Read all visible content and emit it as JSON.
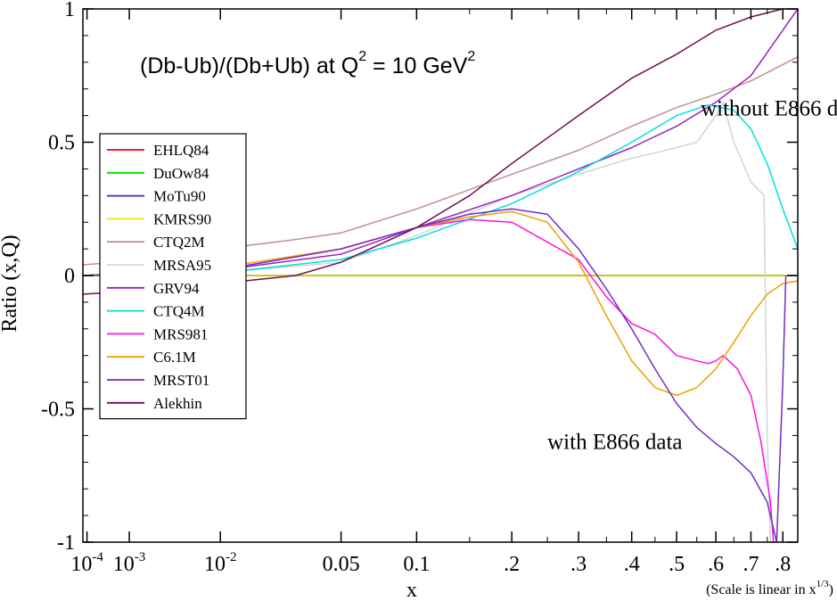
{
  "chart_data": {
    "type": "line",
    "title": {
      "prefix": "(Db-Ub)/(Db+Ub) at Q",
      "sup1": "2",
      "mid": " = 10 GeV",
      "sup2": "2"
    },
    "xlabel": "x",
    "ylabel": "Ratio  (x,Q)",
    "x_scale": "cube-root",
    "scale_note": {
      "text": "(Scale is linear in x",
      "sup": "1/3",
      "close": ")"
    },
    "xlim": [
      7e-05,
      0.85
    ],
    "ylim": [
      -1,
      1
    ],
    "y_ticks": [
      {
        "value": -1,
        "label": "-1"
      },
      {
        "value": -0.5,
        "label": "-0.5"
      },
      {
        "value": 0,
        "label": "0"
      },
      {
        "value": 0.5,
        "label": "0.5"
      },
      {
        "value": 1,
        "label": "1"
      }
    ],
    "x_ticks": [
      {
        "value": 0.0001,
        "label": "10",
        "sup": "-4"
      },
      {
        "value": 0.001,
        "label": "10",
        "sup": "-3"
      },
      {
        "value": 0.01,
        "label": "10",
        "sup": "-2"
      },
      {
        "value": 0.05,
        "label": "0.05"
      },
      {
        "value": 0.1,
        "label": "0.1"
      },
      {
        "value": 0.2,
        "label": ".2"
      },
      {
        "value": 0.3,
        "label": ".3"
      },
      {
        "value": 0.4,
        "label": ".4"
      },
      {
        "value": 0.5,
        "label": ".5"
      },
      {
        "value": 0.6,
        "label": ".6"
      },
      {
        "value": 0.7,
        "label": ".7"
      },
      {
        "value": 0.8,
        "label": ".8"
      }
    ],
    "annotations": [
      {
        "text": "without E866 data",
        "x": 0.56,
        "y": 0.6
      },
      {
        "text": "with E866 data",
        "x": 0.25,
        "y": -0.65
      }
    ],
    "legend_position": "left-middle",
    "series": [
      {
        "name": "EHLQ84",
        "color": "#ff0000",
        "x": [
          7e-05,
          0.85
        ],
        "y": [
          0,
          0
        ]
      },
      {
        "name": "DuOw84",
        "color": "#00dd00",
        "x": [
          7e-05,
          0.85
        ],
        "y": [
          0,
          0
        ]
      },
      {
        "name": "MoTu90",
        "color": "#3030c0",
        "x": [
          7e-05,
          0.85
        ],
        "y": [
          0,
          0
        ]
      },
      {
        "name": "KMRS90",
        "color": "#e8e800",
        "x": [
          7e-05,
          0.85
        ],
        "y": [
          0,
          0
        ]
      },
      {
        "name": "CTQ2M",
        "color": "#c09090",
        "x": [
          7e-05,
          0.005,
          0.01,
          0.03,
          0.05,
          0.1,
          0.2,
          0.3,
          0.4,
          0.5,
          0.6,
          0.7,
          0.85
        ],
        "y": [
          0.04,
          0.07,
          0.1,
          0.135,
          0.16,
          0.25,
          0.38,
          0.47,
          0.56,
          0.63,
          0.68,
          0.73,
          0.82
        ]
      },
      {
        "name": "MRSA95",
        "color": "#d4d4d4",
        "x": [
          7e-05,
          0.01,
          0.05,
          0.1,
          0.2,
          0.3,
          0.4,
          0.45,
          0.5,
          0.55,
          0.6,
          0.62,
          0.65,
          0.7,
          0.74,
          0.75,
          0.76
        ],
        "y": [
          0,
          0.01,
          0.05,
          0.15,
          0.3,
          0.38,
          0.44,
          0.46,
          0.48,
          0.5,
          0.6,
          0.65,
          0.5,
          0.35,
          0.3,
          -0.6,
          -1
        ]
      },
      {
        "name": "GRV94",
        "color": "#9a20c0",
        "x": [
          7e-05,
          0.01,
          0.05,
          0.1,
          0.2,
          0.3,
          0.4,
          0.5,
          0.6,
          0.7,
          0.8,
          0.85
        ],
        "y": [
          0,
          0.02,
          0.08,
          0.18,
          0.3,
          0.4,
          0.48,
          0.56,
          0.65,
          0.75,
          0.92,
          1.0
        ]
      },
      {
        "name": "CTQ4M",
        "color": "#00e0e0",
        "x": [
          7e-05,
          0.01,
          0.05,
          0.1,
          0.2,
          0.3,
          0.4,
          0.5,
          0.58,
          0.65,
          0.7,
          0.75,
          0.8,
          0.85
        ],
        "y": [
          0,
          0.01,
          0.06,
          0.14,
          0.27,
          0.39,
          0.5,
          0.6,
          0.64,
          0.62,
          0.55,
          0.42,
          0.25,
          0.1
        ]
      },
      {
        "name": "MRS981",
        "color": "#ff10e0",
        "x": [
          7e-05,
          0.01,
          0.05,
          0.1,
          0.15,
          0.2,
          0.3,
          0.35,
          0.4,
          0.45,
          0.5,
          0.55,
          0.58,
          0.6,
          0.62,
          0.66,
          0.7,
          0.73,
          0.76,
          0.77
        ],
        "y": [
          0,
          0.02,
          0.1,
          0.18,
          0.21,
          0.2,
          0.06,
          -0.08,
          -0.18,
          -0.22,
          -0.3,
          -0.32,
          -0.33,
          -0.32,
          -0.3,
          -0.35,
          -0.45,
          -0.62,
          -0.85,
          -1
        ]
      },
      {
        "name": "C6.1M",
        "color": "#f0a000",
        "x": [
          7e-05,
          0.01,
          0.05,
          0.1,
          0.15,
          0.2,
          0.25,
          0.3,
          0.35,
          0.4,
          0.45,
          0.5,
          0.55,
          0.6,
          0.65,
          0.7,
          0.75,
          0.8,
          0.85
        ],
        "y": [
          0,
          0.03,
          0.1,
          0.18,
          0.22,
          0.24,
          0.2,
          0.05,
          -0.15,
          -0.32,
          -0.42,
          -0.45,
          -0.42,
          -0.35,
          -0.25,
          -0.15,
          -0.07,
          -0.03,
          -0.02
        ]
      },
      {
        "name": "MRST01",
        "color": "#7030c0",
        "x": [
          7e-05,
          0.01,
          0.05,
          0.1,
          0.15,
          0.2,
          0.25,
          0.3,
          0.35,
          0.4,
          0.45,
          0.5,
          0.55,
          0.6,
          0.65,
          0.7,
          0.75,
          0.78,
          0.8,
          0.81
        ],
        "y": [
          0,
          0.02,
          0.1,
          0.18,
          0.23,
          0.25,
          0.23,
          0.1,
          -0.05,
          -0.2,
          -0.35,
          -0.48,
          -0.57,
          -0.63,
          -0.68,
          -0.74,
          -0.85,
          -1,
          -0.4,
          0
        ]
      },
      {
        "name": "Alekhin",
        "color": "#701050",
        "x": [
          7e-05,
          0.001,
          0.005,
          0.01,
          0.03,
          0.05,
          0.1,
          0.15,
          0.2,
          0.3,
          0.4,
          0.5,
          0.6,
          0.7,
          0.8,
          0.85
        ],
        "y": [
          -0.07,
          -0.06,
          -0.04,
          -0.03,
          0.0,
          0.05,
          0.18,
          0.3,
          0.42,
          0.6,
          0.74,
          0.83,
          0.92,
          0.97,
          1.0,
          1.0
        ]
      }
    ]
  }
}
